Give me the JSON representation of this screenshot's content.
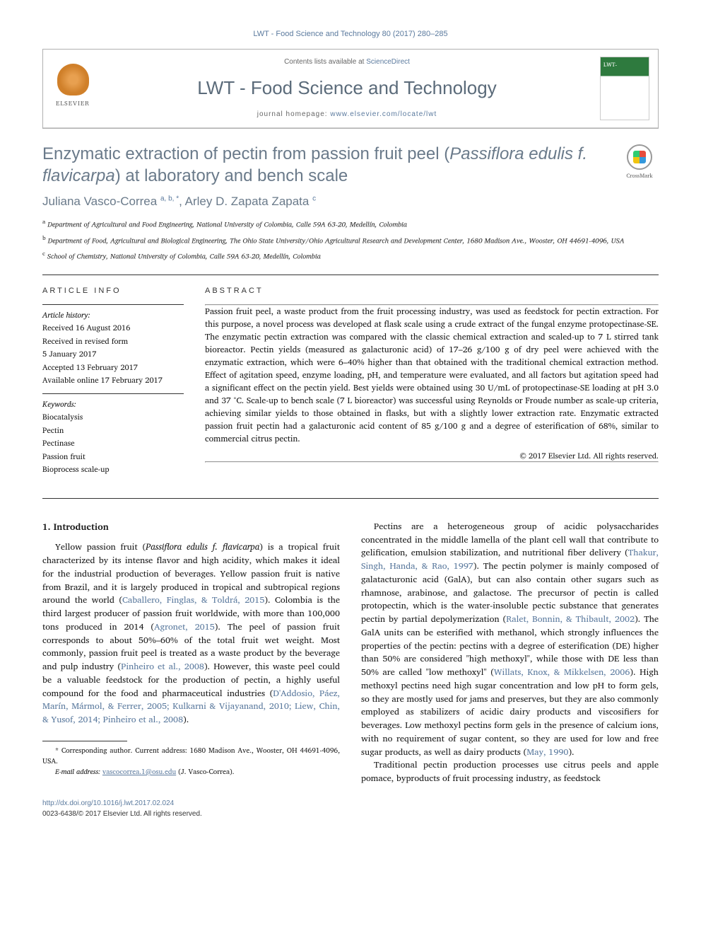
{
  "header": {
    "citation": "LWT - Food Science and Technology 80 (2017) 280–285",
    "contents_prefix": "Contents lists available at ",
    "contents_link": "ScienceDirect",
    "journal_name": "LWT - Food Science and Technology",
    "homepage_prefix": "journal homepage: ",
    "homepage_url": "www.elsevier.com/locate/lwt",
    "publisher_logo": "ELSEVIER",
    "crossmark_label": "CrossMark"
  },
  "article": {
    "title_part1": "Enzymatic extraction of pectin from passion fruit peel (",
    "title_italic": "Passiflora edulis f. flavicarpa",
    "title_part2": ") at laboratory and bench scale",
    "authors_html": "Juliana Vasco-Correa",
    "author1_sup": "a, b, *",
    "author_sep": ", ",
    "author2": "Arley D. Zapata Zapata",
    "author2_sup": "c"
  },
  "affiliations": {
    "a": "Department of Agricultural and Food Engineering, National University of Colombia, Calle 59A 63-20, Medellín, Colombia",
    "b": "Department of Food, Agricultural and Biological Engineering, The Ohio State University/Ohio Agricultural Research and Development Center, 1680 Madison Ave., Wooster, OH 44691-4096, USA",
    "c": "School of Chemistry, National University of Colombia, Calle 59A 63-20, Medellín, Colombia"
  },
  "info": {
    "label": "ARTICLE INFO",
    "history_head": "Article history:",
    "received": "Received 16 August 2016",
    "revised1": "Received in revised form",
    "revised2": "5 January 2017",
    "accepted": "Accepted 13 February 2017",
    "online": "Available online 17 February 2017",
    "keywords_head": "Keywords:",
    "keywords": [
      "Biocatalysis",
      "Pectin",
      "Pectinase",
      "Passion fruit",
      "Bioprocess scale-up"
    ]
  },
  "abstract": {
    "label": "ABSTRACT",
    "text": "Passion fruit peel, a waste product from the fruit processing industry, was used as feedstock for pectin extraction. For this purpose, a novel process was developed at flask scale using a crude extract of the fungal enzyme protopectinase-SE. The enzymatic pectin extraction was compared with the classic chemical extraction and scaled-up to 7 L stirred tank bioreactor. Pectin yields (measured as galacturonic acid) of 17–26 g/100 g of dry peel were achieved with the enzymatic extraction, which were 6–40% higher than that obtained with the traditional chemical extraction method. Effect of agitation speed, enzyme loading, pH, and temperature were evaluated, and all factors but agitation speed had a significant effect on the pectin yield. Best yields were obtained using 30 U/mL of protopectinase-SE loading at pH 3.0 and 37 °C. Scale-up to bench scale (7 L bioreactor) was successful using Reynolds or Froude number as scale-up criteria, achieving similar yields to those obtained in flasks, but with a slightly lower extraction rate. Enzymatic extracted passion fruit pectin had a galacturonic acid content of 85 g/100 g and a degree of esterification of 68%, similar to commercial citrus pectin.",
    "copyright": "© 2017 Elsevier Ltd. All rights reserved."
  },
  "body": {
    "section_heading": "1. Introduction",
    "col1_p1_a": "Yellow passion fruit (",
    "col1_p1_italic": "Passiflora edulis f. flavicarpa",
    "col1_p1_b": ") is a tropical fruit characterized by its intense flavor and high acidity, which makes it ideal for the industrial production of beverages. Yellow passion fruit is native from Brazil, and it is largely produced in tropical and subtropical regions around the world (",
    "col1_cite1": "Caballero, Finglas, & Toldrá, 2015",
    "col1_p1_c": "). Colombia is the third largest producer of passion fruit worldwide, with more than 100,000 tons produced in 2014 (",
    "col1_cite2": "Agronet, 2015",
    "col1_p1_d": "). The peel of passion fruit corresponds to about 50%–60% of the total fruit wet weight. Most commonly, passion fruit peel is treated as a waste product by the beverage and pulp industry (",
    "col1_cite3": "Pinheiro et al., 2008",
    "col1_p1_e": "). However, this waste peel could be a valuable feedstock for the production of pectin, a highly useful compound for the food and pharmaceutical industries (",
    "col1_cite4": "D'Addosio, Páez, Marín, Mármol, & Ferrer, 2005; Kulkarni & Vijayanand, 2010; Liew, Chin, & Yusof, 2014; Pinheiro et al., 2008",
    "col1_p1_f": ").",
    "col2_p1_a": "Pectins are a heterogeneous group of acidic polysaccharides concentrated in the middle lamella of the plant cell wall that contribute to gelification, emulsion stabilization, and nutritional fiber delivery (",
    "col2_cite1": "Thakur, Singh, Handa, & Rao, 1997",
    "col2_p1_b": "). The pectin polymer is mainly composed of galatacturonic acid (GalA), but can also contain other sugars such as rhamnose, arabinose, and galactose. The precursor of pectin is called protopectin, which is the water-insoluble pectic substance that generates pectin by partial depolymerization (",
    "col2_cite2": "Ralet, Bonnin, & Thibault, 2002",
    "col2_p1_c": "). The GalA units can be esterified with methanol, which strongly influences the properties of the pectin: pectins with a degree of esterification (DE) higher than 50% are considered \"high methoxyl\", while those with DE less than 50% are called \"low methoxyl\" (",
    "col2_cite3": "Willats, Knox, & Mikkelsen, 2006",
    "col2_p1_d": "). High methoxyl pectins need high sugar concentration and low pH to form gels, so they are mostly used for jams and preserves, but they are also commonly employed as stabilizers of acidic dairy products and viscosifiers for beverages. Low methoxyl pectins form gels in the presence of calcium ions, with no requirement of sugar content, so they are used for low and free sugar products, as well as dairy products (",
    "col2_cite4": "May, 1990",
    "col2_p1_e": ").",
    "col2_p2": "Traditional pectin production processes use citrus peels and apple pomace, byproducts of fruit processing industry, as feedstock"
  },
  "footnote": {
    "corr_label": "* Corresponding author. Current address: 1680 Madison Ave., Wooster, OH 44691-4096, USA.",
    "email_label": "E-mail address: ",
    "email": "vascocorrea.1@osu.edu",
    "email_suffix": " (J. Vasco-Correa)."
  },
  "bottom": {
    "doi": "http://dx.doi.org/10.1016/j.lwt.2017.02.024",
    "issn_copy": "0023-6438/© 2017 Elsevier Ltd. All rights reserved."
  },
  "colors": {
    "link": "#5b7a9e",
    "heading": "#6a7a8a",
    "text": "#1a1a1a"
  }
}
